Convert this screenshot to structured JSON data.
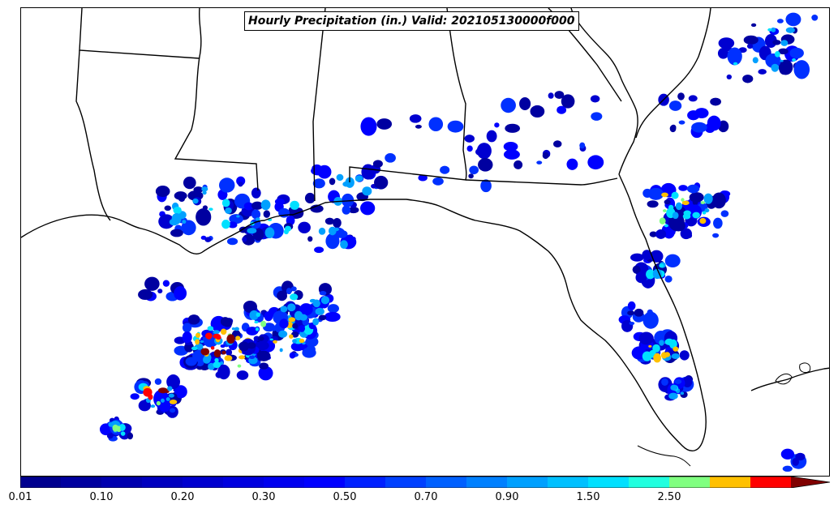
{
  "title": "Hourly Precipitation (in.) Valid: 202105130000f000",
  "colorbar": {
    "colors": [
      "#00008f",
      "#00009f",
      "#0000af",
      "#0000bf",
      "#0000cf",
      "#0000df",
      "#0000ef",
      "#0000ff",
      "#0020ff",
      "#0040ff",
      "#0060ff",
      "#0080ff",
      "#00a0ff",
      "#00c0ff",
      "#00e0ff",
      "#20ffdf",
      "#80ff80",
      "#ffc000",
      "#ff0000",
      "#800000"
    ],
    "tick_labels": [
      "0.01",
      "0.10",
      "0.20",
      "0.30",
      "0.50",
      "0.70",
      "0.90",
      "1.50",
      "2.50"
    ],
    "extend": "max"
  },
  "map": {
    "region": "US Gulf Coast / Florida",
    "features": [
      "state boundaries",
      "coastlines"
    ]
  }
}
